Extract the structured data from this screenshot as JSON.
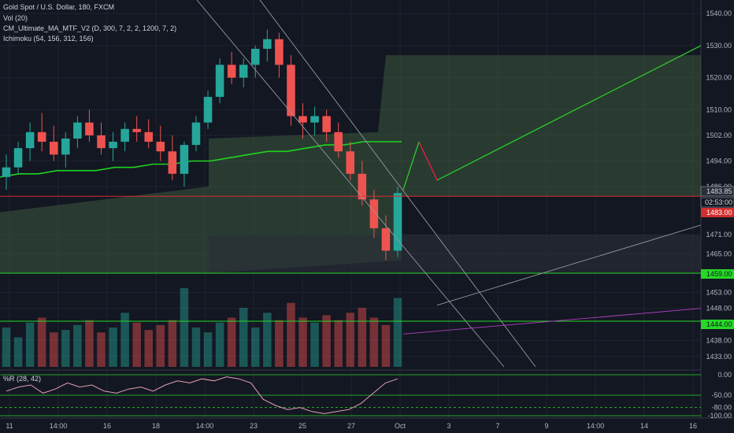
{
  "legend": {
    "title": "Gold Spot / U.S. Dollar, 180, FXCM",
    "volume": "Vol (20)",
    "ma": "CM_Ultimate_MA_MTF_V2 (D, 300, 7, 2, 2, 1200, 7, 2)",
    "ichimoku": "Ichimoku (54, 156, 312, 156)",
    "williams": "%R (28, 42)"
  },
  "colors": {
    "background": "#131722",
    "bull": "#26a69a",
    "bear": "#ef5350",
    "cloud": "#3c5a3e",
    "ma_line": "#1fd41f",
    "projection_green": "#2bd52b",
    "price_tag_current": "#131722",
    "price_tag_red": "#d32f2f",
    "price_tag_green": "#26d926"
  },
  "price_axis": {
    "ticks": [
      "1540.00",
      "1530.00",
      "1520.00",
      "1510.00",
      "1502.00",
      "1494.00",
      "1486.00",
      "1471.00",
      "1465.00",
      "1453.00",
      "1448.00",
      "1438.00",
      "1433.00"
    ],
    "tags": {
      "current_price": "1483.85",
      "countdown": "02:53:00",
      "red_level": "1483.00",
      "green_high": "1459.00",
      "green_low": "1444.00"
    }
  },
  "wr_axis": {
    "ticks": [
      "0.00",
      "-50.00",
      "-80.00",
      "-100.00"
    ],
    "min": -100,
    "max": 0
  },
  "time_axis": {
    "labels": [
      "11",
      "14:00",
      "16",
      "18",
      "14:00",
      "23",
      "25",
      "27",
      "Oct",
      "3",
      "7",
      "9",
      "14:00",
      "14",
      "16"
    ]
  },
  "chart_data": {
    "type": "candlestick",
    "title": "Gold Spot / U.S. Dollar, 180, FXCM",
    "ylim": [
      1430,
      1543
    ],
    "y_right_labels": [
      "1540.00",
      "1530.00",
      "1520.00",
      "1510.00",
      "1502.00",
      "1494.00",
      "1486.00",
      "1471.00",
      "1465.00",
      "1453.00",
      "1448.00",
      "1438.00",
      "1433.00"
    ],
    "series": [
      {
        "name": "price",
        "ohlc_points": [
          [
            1489,
            1496,
            1485,
            1492
          ],
          [
            1492,
            1500,
            1490,
            1498
          ],
          [
            1498,
            1506,
            1494,
            1503
          ],
          [
            1503,
            1509,
            1497,
            1500
          ],
          [
            1500,
            1505,
            1494,
            1496
          ],
          [
            1496,
            1503,
            1492,
            1501
          ],
          [
            1501,
            1508,
            1498,
            1506
          ],
          [
            1506,
            1510,
            1500,
            1502
          ],
          [
            1502,
            1506,
            1496,
            1498
          ],
          [
            1498,
            1503,
            1494,
            1500
          ],
          [
            1500,
            1506,
            1497,
            1504
          ],
          [
            1504,
            1508,
            1500,
            1503
          ],
          [
            1503,
            1507,
            1498,
            1500
          ],
          [
            1500,
            1505,
            1494,
            1497
          ],
          [
            1497,
            1502,
            1488,
            1490
          ],
          [
            1490,
            1500,
            1486,
            1499
          ],
          [
            1499,
            1508,
            1497,
            1506
          ],
          [
            1506,
            1516,
            1504,
            1514
          ],
          [
            1514,
            1526,
            1512,
            1524
          ],
          [
            1524,
            1528,
            1518,
            1520
          ],
          [
            1520,
            1526,
            1517,
            1524
          ],
          [
            1524,
            1530,
            1520,
            1529
          ],
          [
            1529,
            1535,
            1525,
            1532
          ],
          [
            1532,
            1534,
            1520,
            1524
          ],
          [
            1524,
            1527,
            1505,
            1508
          ],
          [
            1508,
            1512,
            1501,
            1506
          ],
          [
            1506,
            1511,
            1502,
            1508
          ],
          [
            1508,
            1510,
            1500,
            1503
          ],
          [
            1503,
            1506,
            1495,
            1497
          ],
          [
            1497,
            1500,
            1488,
            1490
          ],
          [
            1490,
            1494,
            1480,
            1482
          ],
          [
            1482,
            1485,
            1470,
            1473
          ],
          [
            1473,
            1477,
            1463,
            1466
          ],
          [
            1466,
            1486,
            1464,
            1484
          ]
        ]
      },
      {
        "name": "CM_Ultimate_MA_MTF_V2",
        "values": [
          1489,
          1490,
          1490,
          1491,
          1491,
          1491,
          1492,
          1492,
          1493,
          1493,
          1494,
          1494,
          1495,
          1496,
          1497,
          1497,
          1498,
          1499,
          1499,
          1500,
          1500,
          1500
        ]
      },
      {
        "name": "volume",
        "values": [
          80,
          60,
          90,
          100,
          70,
          75,
          85,
          95,
          70,
          80,
          110,
          90,
          75,
          85,
          95,
          160,
          80,
          70,
          90,
          100,
          120,
          80,
          110,
          95,
          130,
          100,
          90,
          105,
          95,
          110,
          120,
          100,
          85,
          140
        ]
      },
      {
        "name": "%R",
        "values": [
          -40,
          -30,
          -25,
          -45,
          -35,
          -20,
          -30,
          -25,
          -40,
          -45,
          -35,
          -30,
          -40,
          -25,
          -15,
          -20,
          -10,
          -15,
          -5,
          -10,
          -20,
          -60,
          -75,
          -85,
          -80,
          -90,
          -95,
          -90,
          -85,
          -70,
          -45,
          -20,
          -10
        ]
      }
    ],
    "horizontal_levels": [
      1483,
      1459,
      1444
    ],
    "wr_levels": [
      0,
      -50,
      -80,
      -100
    ],
    "grid": true,
    "legend_position": "top-left"
  }
}
